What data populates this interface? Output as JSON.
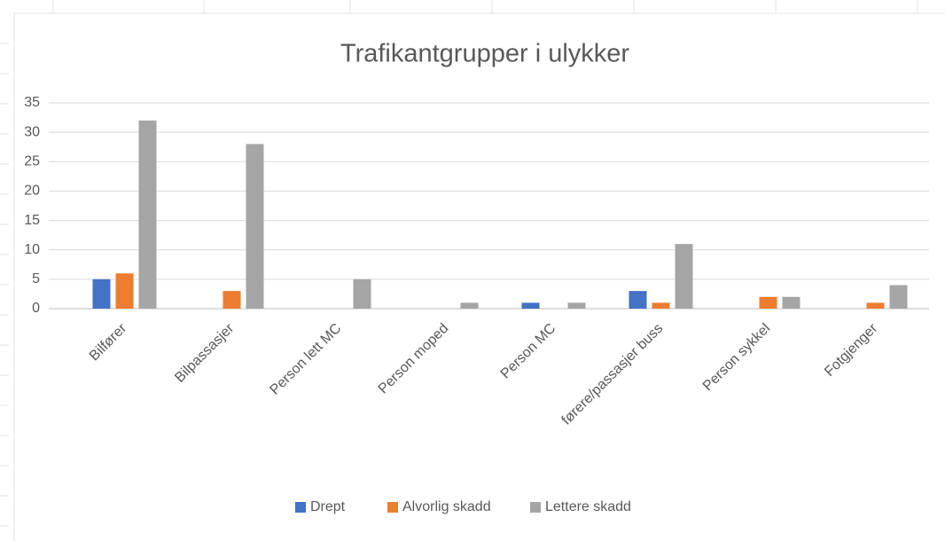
{
  "chart_data": {
    "type": "bar",
    "title": "Trafikantgrupper i ulykker",
    "categories": [
      "Bilfører",
      "Bilpassasjer",
      "Person lett MC",
      "Person moped",
      "Person MC",
      "førere/passasjer buss",
      "Person sykkel",
      "Fotgjenger"
    ],
    "series": [
      {
        "name": "Drept",
        "color": "#4472c4",
        "values": [
          5,
          0,
          0,
          0,
          1,
          3,
          0,
          0
        ]
      },
      {
        "name": "Alvorlig skadd",
        "color": "#ed7d31",
        "values": [
          6,
          3,
          0,
          0,
          0,
          1,
          2,
          1
        ]
      },
      {
        "name": "Lettere skadd",
        "color": "#a5a5a5",
        "values": [
          32,
          28,
          5,
          1,
          1,
          11,
          2,
          4
        ]
      }
    ],
    "ylim": [
      0,
      35
    ],
    "yticks": [
      0,
      5,
      10,
      15,
      20,
      25,
      30,
      35
    ],
    "grid": true,
    "legend": "bottom"
  }
}
